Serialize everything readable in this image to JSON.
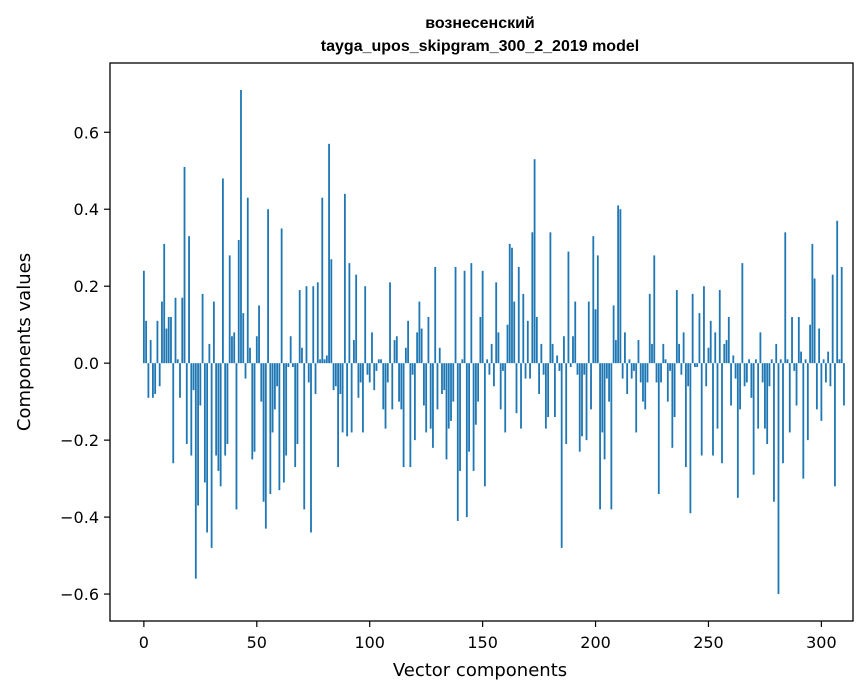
{
  "chart_data": {
    "type": "bar",
    "title_line1": "вознесенский",
    "title_line2": "tayga_upos_skipgram_300_2_2019 model",
    "xlabel": "Vector components",
    "ylabel": "Components values",
    "xlim": [
      -15,
      314
    ],
    "ylim": [
      -0.67,
      0.78
    ],
    "xticks": [
      0,
      50,
      100,
      150,
      200,
      250,
      300
    ],
    "xtick_labels": [
      "0",
      "50",
      "100",
      "150",
      "200",
      "250",
      "300"
    ],
    "yticks": [
      -0.6,
      -0.4,
      -0.2,
      0.0,
      0.2,
      0.4,
      0.6
    ],
    "ytick_labels": [
      "−0.6",
      "−0.4",
      "−0.2",
      "0.0",
      "0.2",
      "0.4",
      "0.6"
    ],
    "grid": false,
    "bar_color": "#1f77b4",
    "values": [
      0.24,
      0.11,
      -0.09,
      0.06,
      -0.09,
      -0.08,
      0.11,
      -0.06,
      0.16,
      0.31,
      0.09,
      0.12,
      0.12,
      -0.26,
      0.17,
      0.01,
      -0.09,
      0.17,
      0.51,
      -0.21,
      0.33,
      -0.24,
      -0.07,
      -0.56,
      -0.37,
      -0.11,
      0.18,
      -0.31,
      -0.44,
      0.05,
      -0.48,
      0.16,
      -0.24,
      -0.28,
      -0.32,
      0.48,
      -0.24,
      -0.21,
      0.28,
      0.07,
      0.08,
      -0.38,
      0.32,
      0.71,
      0.13,
      -0.04,
      0.43,
      0.04,
      -0.25,
      -0.23,
      0.07,
      0.15,
      -0.1,
      -0.36,
      -0.43,
      0.4,
      -0.34,
      -0.18,
      -0.12,
      -0.06,
      -0.33,
      0.35,
      -0.31,
      -0.24,
      -0.01,
      0.07,
      -0.01,
      -0.27,
      -0.21,
      0.19,
      0.04,
      -0.38,
      0.2,
      -0.05,
      -0.44,
      0.2,
      -0.08,
      0.21,
      0.01,
      0.43,
      0.01,
      0.02,
      0.57,
      0.27,
      -0.07,
      -0.06,
      -0.27,
      -0.08,
      -0.18,
      0.44,
      -0.19,
      0.26,
      -0.18,
      0.06,
      0.23,
      -0.09,
      -0.05,
      -0.18,
      0.2,
      -0.03,
      -0.05,
      0.08,
      -0.07,
      -0.02,
      0.01,
      0.01,
      -0.12,
      -0.17,
      -0.05,
      0.21,
      -0.12,
      0.06,
      0.07,
      -0.1,
      -0.12,
      -0.27,
      0.04,
      0.11,
      -0.27,
      -0.03,
      -0.2,
      0.08,
      0.16,
      0.09,
      -0.11,
      -0.18,
      0.12,
      -0.17,
      -0.22,
      0.25,
      -0.12,
      0.04,
      -0.08,
      -0.07,
      -0.25,
      -0.17,
      -0.15,
      -0.1,
      0.25,
      -0.41,
      -0.28,
      0.01,
      0.24,
      -0.4,
      -0.23,
      0.26,
      -0.28,
      -0.16,
      -0.1,
      0.12,
      0.24,
      -0.32,
      0.01,
      -0.03,
      0.05,
      -0.06,
      0.21,
      0.08,
      -0.12,
      -0.02,
      -0.18,
      0.1,
      0.31,
      0.3,
      0.16,
      -0.13,
      0.25,
      -0.17,
      0.18,
      -0.04,
      0.11,
      -0.04,
      0.34,
      0.53,
      0.12,
      -0.08,
      0.05,
      -0.03,
      -0.17,
      -0.14,
      0.34,
      0.05,
      -0.14,
      0.02,
      -0.02,
      -0.48,
      0.07,
      -0.21,
      0.29,
      -0.01,
      0.07,
      0.16,
      -0.03,
      -0.23,
      -0.19,
      -0.03,
      -0.2,
      0.16,
      -0.12,
      0.33,
      0.14,
      0.28,
      -0.38,
      -0.18,
      -0.25,
      -0.04,
      -0.1,
      -0.38,
      0.15,
      0.06,
      0.41,
      0.4,
      -0.04,
      0.08,
      -0.08,
      0.01,
      -0.04,
      -0.02,
      -0.18,
      0.06,
      -0.05,
      -0.1,
      -0.12,
      -0.05,
      0.18,
      0.05,
      0.28,
      -0.05,
      -0.34,
      -0.05,
      0.05,
      0.01,
      -0.1,
      -0.02,
      -0.22,
      -0.14,
      0.19,
      0.05,
      -0.03,
      0.08,
      -0.27,
      -0.06,
      -0.39,
      0.18,
      -0.01,
      -0.01,
      0.13,
      -0.24,
      0.2,
      -0.06,
      0.04,
      0.11,
      -0.24,
      0.08,
      -0.17,
      0.19,
      -0.26,
      0.05,
      0.06,
      0.12,
      -0.11,
      0.02,
      -0.04,
      -0.35,
      -0.12,
      0.26,
      -0.06,
      -0.05,
      0.01,
      -0.09,
      -0.29,
      0.01,
      -0.17,
      0.08,
      -0.05,
      -0.17,
      -0.21,
      -0.06,
      0.01,
      -0.36,
      0.05,
      -0.6,
      0.01,
      -0.26,
      0.34,
      0.01,
      -0.18,
      0.12,
      -0.02,
      -0.11,
      0.12,
      0.03,
      -0.3,
      0.01,
      -0.2,
      0.1,
      0.31,
      0.22,
      -0.12,
      0.09,
      -0.15,
      0.01,
      -0.05,
      0.03,
      -0.06,
      0.23,
      -0.32,
      0.37,
      0.01,
      0.25,
      -0.11
    ]
  }
}
